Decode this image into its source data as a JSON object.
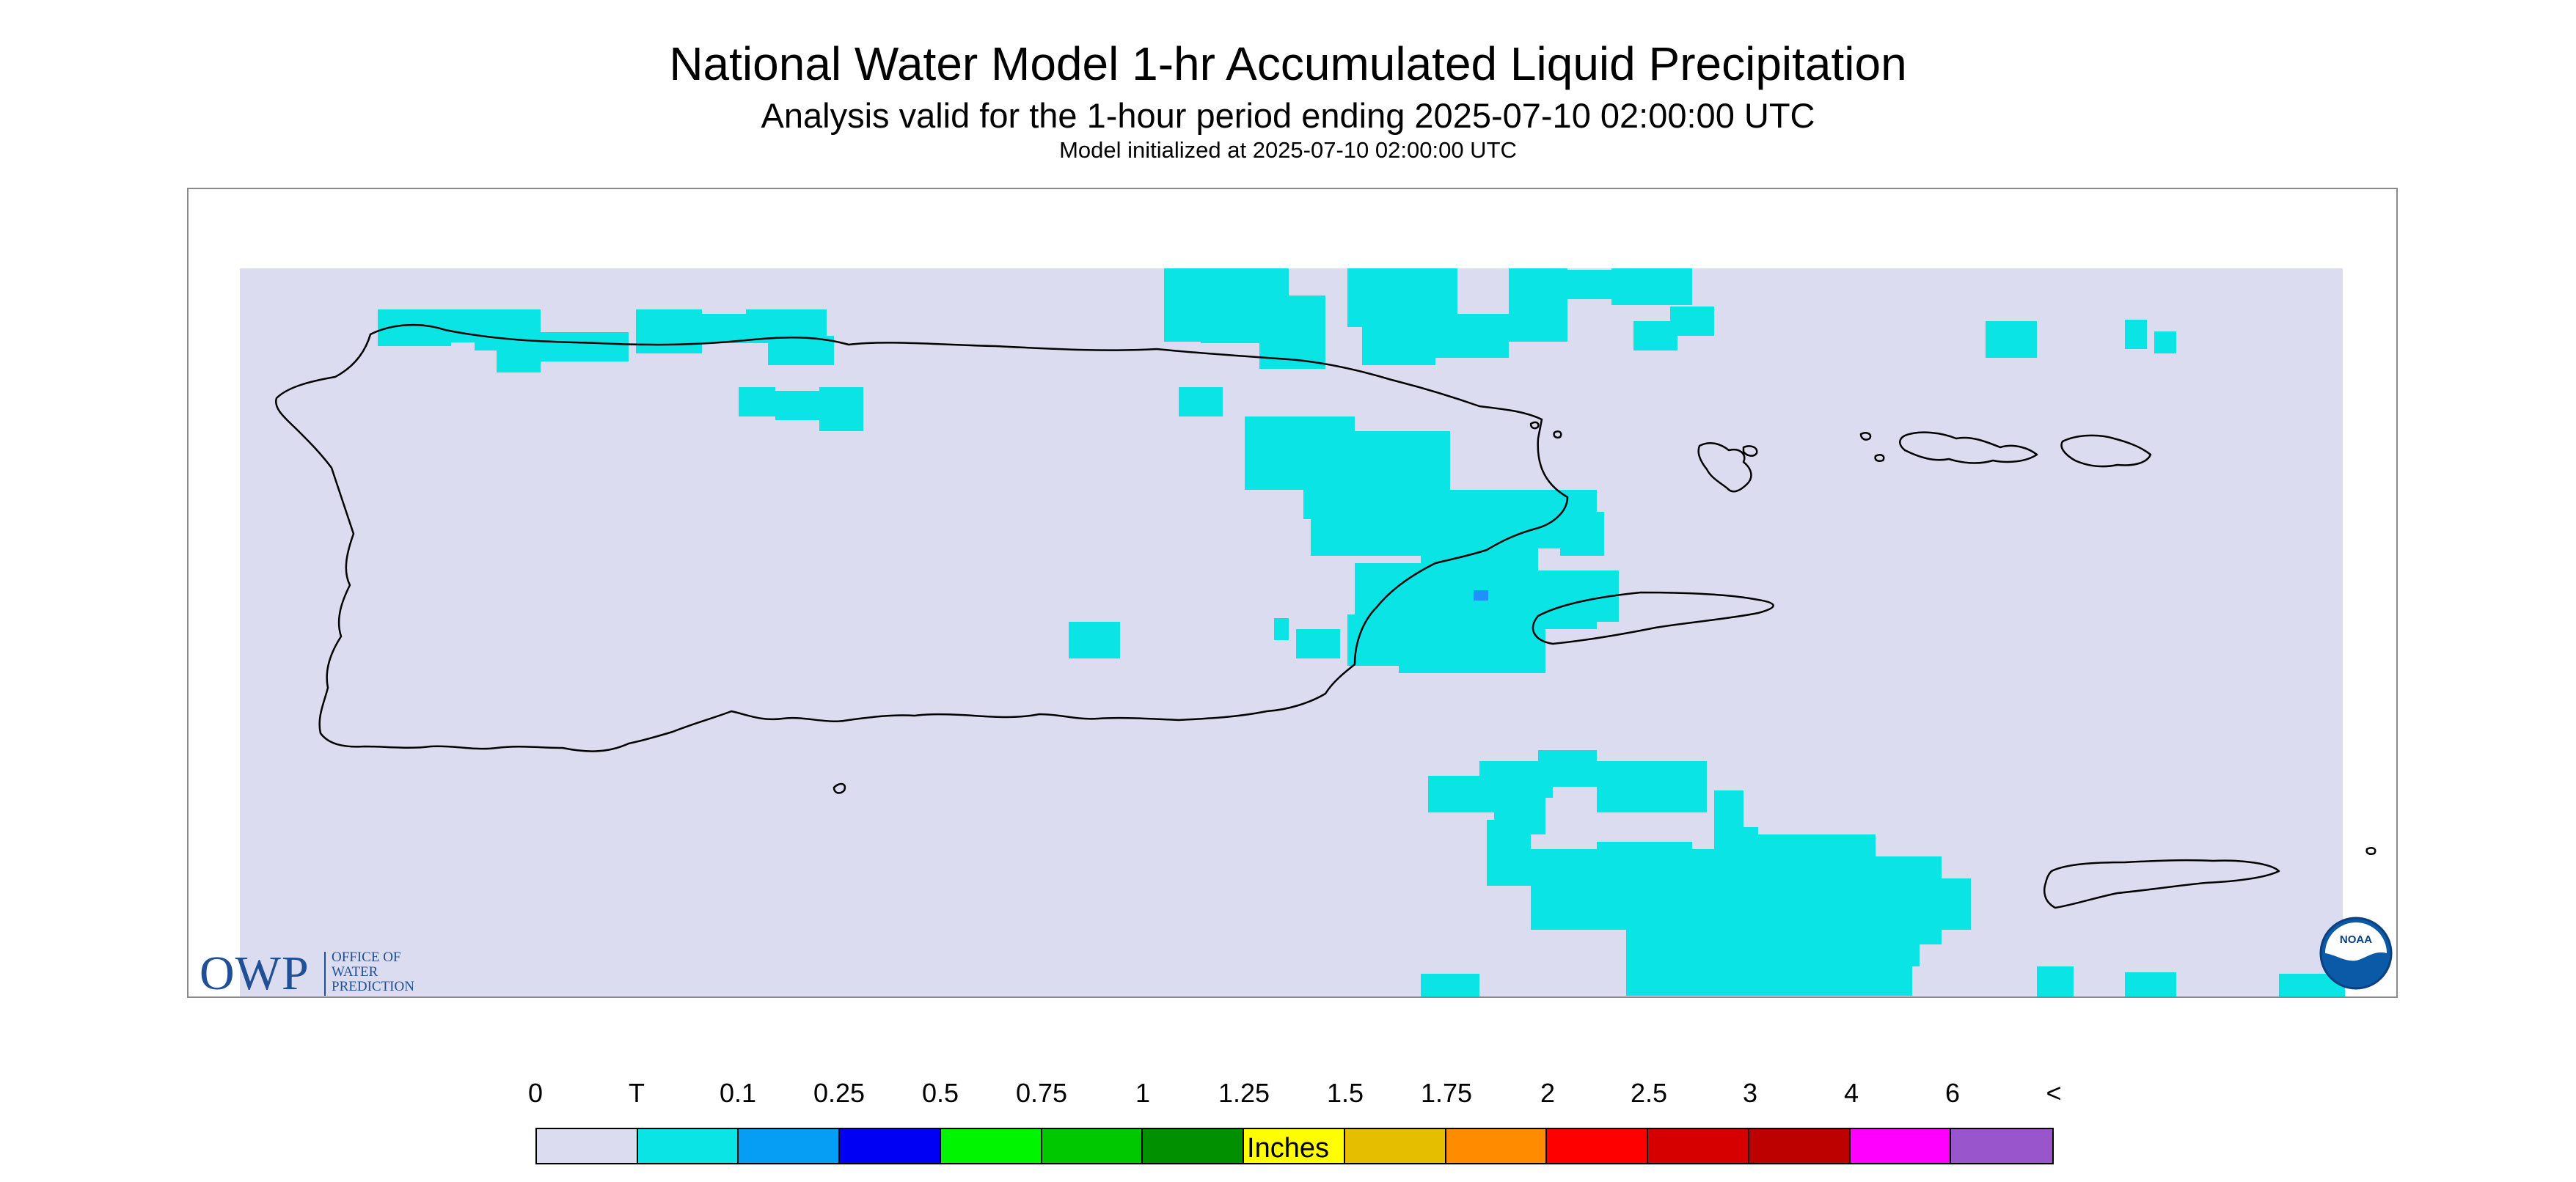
{
  "title": "National Water Model 1-hr Accumulated Liquid Precipitation",
  "subtitle": "Analysis valid for the 1-hour period ending 2025-07-10 02:00:00 UTC",
  "init_line": "Model initialized at 2025-07-10 02:00:00 UTC",
  "map": {
    "domain_fill": "#dcdcf0",
    "trace_fill": "#0ae4e4",
    "light_fill": "#1e90ff",
    "region_description_visible": "Puerto Rico, Vieques, Culebra and U.S. Virgin Islands"
  },
  "logos": {
    "owp_mark": "OWP",
    "owp_text": [
      "OFFICE OF",
      "WATER",
      "PREDICTION"
    ],
    "noaa_text": "NOAA"
  },
  "legend": {
    "labels": [
      "0",
      "T",
      "0.1",
      "0.25",
      "0.5",
      "0.75",
      "1",
      "1.25",
      "1.5",
      "1.75",
      "2",
      "2.5",
      "3",
      "4",
      "6",
      "<"
    ],
    "colors": [
      "#dcdcf0",
      "#0ae4e4",
      "#069ef5",
      "#0000f5",
      "#00f500",
      "#00c800",
      "#009000",
      "#ffff00",
      "#e6be00",
      "#ff8c00",
      "#ff0000",
      "#d70000",
      "#bd0000",
      "#ff00ff",
      "#9955cc"
    ],
    "units": "Inches"
  }
}
